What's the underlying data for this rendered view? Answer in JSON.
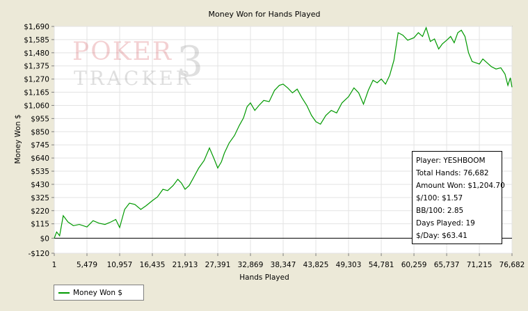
{
  "chart_data": {
    "type": "line",
    "title": "Money Won for Hands Played",
    "xlabel": "Hands Played",
    "ylabel": "Money Won $",
    "xlim": [
      1,
      76682
    ],
    "ylim": [
      -120,
      1690
    ],
    "x_ticks": [
      1,
      5479,
      10957,
      16435,
      21913,
      27391,
      32869,
      38347,
      43825,
      49303,
      54781,
      60259,
      65737,
      71215,
      76682
    ],
    "x_tick_labels": [
      "1",
      "5,479",
      "10,957",
      "16,435",
      "21,913",
      "27,391",
      "32,869",
      "38,347",
      "43,825",
      "49,303",
      "54,781",
      "60,259",
      "65,737",
      "71,215",
      "76,682"
    ],
    "y_ticks": [
      -120,
      0,
      115,
      220,
      325,
      430,
      535,
      640,
      745,
      850,
      955,
      1060,
      1165,
      1270,
      1375,
      1480,
      1585,
      1690
    ],
    "y_tick_labels": [
      "-$120",
      "$0",
      "$115",
      "$220",
      "$325",
      "$430",
      "$535",
      "$640",
      "$745",
      "$850",
      "$955",
      "$1,060",
      "$1,165",
      "$1,270",
      "$1,375",
      "$1,480",
      "$1,585",
      "$1,690"
    ],
    "grid": true,
    "legend_position": "bottom-left",
    "series": [
      {
        "name": "Money Won $",
        "color": "#009900",
        "x": [
          1,
          400,
          900,
          1500,
          2300,
          3200,
          4200,
          5479,
          6500,
          7500,
          8500,
          9500,
          10300,
          10957,
          11800,
          12600,
          13500,
          14500,
          15400,
          16435,
          17300,
          18200,
          19000,
          19900,
          20700,
          21300,
          21913,
          22600,
          23300,
          24200,
          25100,
          26000,
          26800,
          27391,
          28000,
          28500,
          29300,
          30200,
          31000,
          31700,
          32300,
          32869,
          33600,
          34300,
          35100,
          36000,
          36900,
          37700,
          38347,
          39100,
          39900,
          40700,
          41500,
          42300,
          43100,
          43825,
          44600,
          45500,
          46400,
          47300,
          48200,
          49303,
          50200,
          51000,
          51800,
          52600,
          53400,
          54100,
          54781,
          55500,
          56200,
          56900,
          57600,
          58400,
          59200,
          60259,
          61000,
          61700,
          62300,
          63000,
          63700,
          64400,
          65000,
          65737,
          66400,
          67000,
          67600,
          68200,
          68800,
          69400,
          70000,
          70600,
          71215,
          71800,
          72500,
          73200,
          74000,
          74800,
          75500,
          76000,
          76400,
          76682
        ],
        "values": [
          0,
          50,
          20,
          180,
          130,
          100,
          110,
          90,
          140,
          120,
          110,
          130,
          150,
          85,
          230,
          280,
          270,
          230,
          260,
          300,
          330,
          390,
          380,
          420,
          470,
          440,
          390,
          420,
          480,
          560,
          620,
          720,
          630,
          560,
          610,
          680,
          760,
          820,
          900,
          960,
          1050,
          1080,
          1020,
          1060,
          1100,
          1090,
          1180,
          1220,
          1230,
          1200,
          1160,
          1190,
          1120,
          1060,
          980,
          930,
          910,
          980,
          1020,
          1000,
          1080,
          1130,
          1200,
          1160,
          1070,
          1180,
          1260,
          1240,
          1270,
          1230,
          1300,
          1420,
          1640,
          1620,
          1580,
          1600,
          1640,
          1610,
          1680,
          1570,
          1590,
          1510,
          1550,
          1580,
          1610,
          1560,
          1640,
          1660,
          1610,
          1480,
          1410,
          1400,
          1390,
          1430,
          1400,
          1370,
          1350,
          1360,
          1310,
          1220,
          1280,
          1205
        ]
      }
    ]
  },
  "info_box": {
    "player": "Player: YESHBOOM",
    "total_hands": "Total Hands: 76,682",
    "amount_won": "Amount Won: $1,204.70",
    "per_100": "$/100: $1.57",
    "bb_100": "BB/100: 2.85",
    "days_played": "Days Played: 19",
    "per_day": "$/Day: $63.41"
  },
  "legend": {
    "label": "Money Won $"
  },
  "watermark": {
    "line1": "POKER",
    "line2": "TRACKER",
    "mark": "3"
  }
}
